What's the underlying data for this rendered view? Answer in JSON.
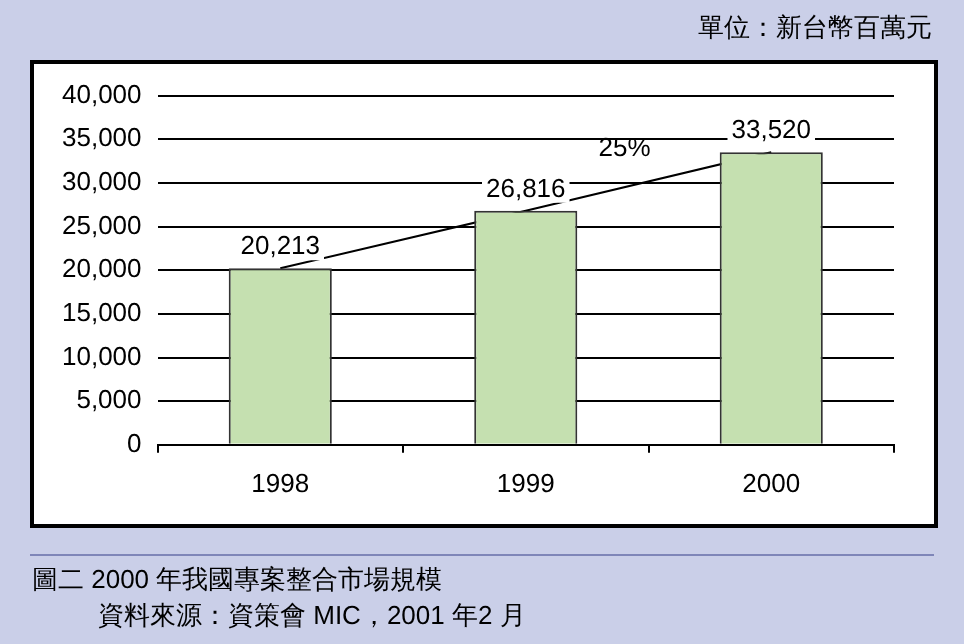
{
  "chart_data": {
    "type": "bar",
    "title": "圖二  2000 年我國專案整合市場規模",
    "categories": [
      "1998",
      "1999",
      "2000"
    ],
    "series": [
      {
        "color": "#c5e0b0",
        "values": [
          20213,
          26816,
          33520
        ],
        "value_labels": [
          "20,213",
          "26,816",
          "33,520"
        ]
      },
      {
        "type": "line",
        "color": "#000000",
        "values": [
          20213,
          26816,
          33520
        ]
      }
    ],
    "ylim": [
      0,
      40000
    ],
    "yticks": [
      {
        "value": 0,
        "label": "0"
      },
      {
        "value": 5000,
        "label": "5,000"
      },
      {
        "value": 10000,
        "label": "10,000"
      },
      {
        "value": 15000,
        "label": "15,000"
      },
      {
        "value": 20000,
        "label": "20,000"
      },
      {
        "value": 25000,
        "label": "25,000"
      },
      {
        "value": 30000,
        "label": "30,000"
      },
      {
        "value": 35000,
        "label": "35,000"
      },
      {
        "value": 40000,
        "label": "40,000"
      }
    ],
    "grid": "y",
    "legend": false,
    "marker": "none",
    "annotations": [
      "單位：新台幣百萬元",
      "25%",
      "資料來源：資策會 MIC，2001 年2 月"
    ]
  }
}
